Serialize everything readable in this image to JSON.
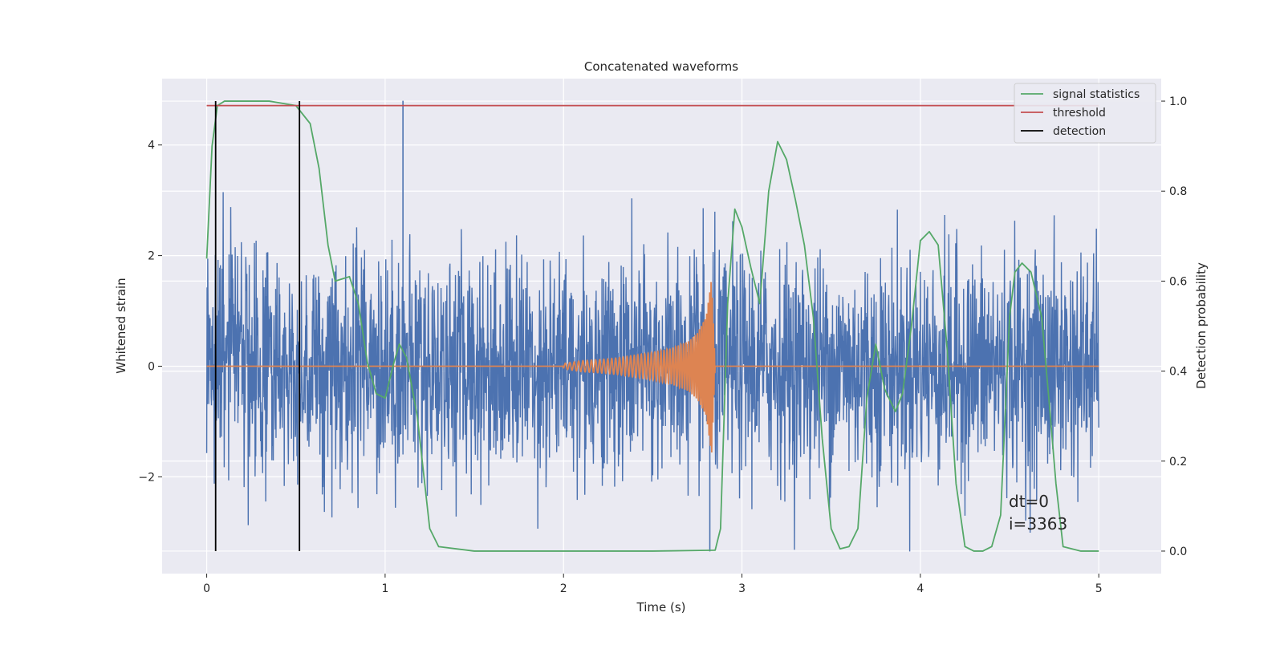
{
  "chart_data": {
    "type": "line",
    "title": "Concatenated waveforms",
    "xlabel": "Time (s)",
    "ylabel": "Whitened strain",
    "ylabel_right": "Detection probability",
    "xlim": [
      -0.25,
      5.35
    ],
    "ylim": [
      -3.75,
      5.2
    ],
    "ylim_right": [
      -0.05,
      1.05
    ],
    "xticks": [
      0,
      1,
      2,
      3,
      4,
      5
    ],
    "xtick_labels": [
      "0",
      "1",
      "2",
      "3",
      "4",
      "5"
    ],
    "yticks": [
      -2,
      0,
      2,
      4
    ],
    "ytick_labels": [
      "−2",
      "0",
      "2",
      "4"
    ],
    "yticks_right": [
      0.0,
      0.2,
      0.4,
      0.6,
      0.8,
      1.0
    ],
    "ytick_labels_right": [
      "0.0",
      "0.2",
      "0.4",
      "0.6",
      "0.8",
      "1.0"
    ],
    "grid": true,
    "style": "seaborn-darkgrid",
    "legend_position": "top-right",
    "series": [
      {
        "name": "strain",
        "axis": "left",
        "color": "#4c72b0",
        "kind": "noise",
        "x_range": [
          0,
          5
        ],
        "mean": 0,
        "std": 1.0,
        "min": -3.35,
        "max": 4.8,
        "notable_spikes": [
          [
            1.1,
            4.8
          ],
          [
            2.82,
            -3.35
          ],
          [
            0.52,
            -3.3
          ]
        ]
      },
      {
        "name": "chirp",
        "axis": "left",
        "color": "#dd8452",
        "kind": "chirp",
        "x": [
          2.0,
          2.1,
          2.2,
          2.3,
          2.4,
          2.5,
          2.6,
          2.7,
          2.75,
          2.8,
          2.83,
          2.85,
          5.0
        ],
        "amplitude": [
          0.05,
          0.1,
          0.12,
          0.15,
          0.2,
          0.25,
          0.32,
          0.45,
          0.6,
          0.9,
          1.6,
          0.0,
          0.0
        ]
      },
      {
        "name": "signal statistics",
        "axis": "right",
        "color": "#55a868",
        "x": [
          0,
          0.03,
          0.06,
          0.1,
          0.2,
          0.35,
          0.5,
          0.58,
          0.63,
          0.68,
          0.72,
          0.76,
          0.8,
          0.85,
          0.9,
          0.95,
          1.0,
          1.05,
          1.08,
          1.12,
          1.18,
          1.25,
          1.3,
          1.5,
          2.0,
          2.5,
          2.85,
          2.88,
          2.92,
          2.96,
          3.0,
          3.05,
          3.1,
          3.15,
          3.2,
          3.25,
          3.3,
          3.35,
          3.4,
          3.45,
          3.5,
          3.55,
          3.6,
          3.65,
          3.7,
          3.75,
          3.8,
          3.86,
          3.9,
          3.95,
          4.0,
          4.05,
          4.1,
          4.15,
          4.2,
          4.25,
          4.3,
          4.35,
          4.4,
          4.45,
          4.5,
          4.53,
          4.57,
          4.62,
          4.68,
          4.72,
          4.76,
          4.8,
          4.9,
          5.0
        ],
        "values": [
          0.65,
          0.9,
          0.99,
          1.0,
          1.0,
          1.0,
          0.99,
          0.95,
          0.85,
          0.68,
          0.6,
          0.605,
          0.61,
          0.55,
          0.42,
          0.35,
          0.34,
          0.42,
          0.46,
          0.43,
          0.3,
          0.05,
          0.01,
          0.0,
          0.0,
          0.0,
          0.002,
          0.05,
          0.55,
          0.76,
          0.72,
          0.63,
          0.55,
          0.8,
          0.91,
          0.87,
          0.78,
          0.68,
          0.52,
          0.25,
          0.05,
          0.005,
          0.01,
          0.05,
          0.34,
          0.46,
          0.36,
          0.31,
          0.35,
          0.5,
          0.69,
          0.71,
          0.68,
          0.45,
          0.15,
          0.01,
          0.0,
          0.0,
          0.01,
          0.08,
          0.52,
          0.62,
          0.64,
          0.62,
          0.52,
          0.34,
          0.15,
          0.01,
          0.0,
          0.0
        ]
      },
      {
        "name": "threshold",
        "axis": "right",
        "color": "#c44e52",
        "x": [
          0,
          5
        ],
        "values": [
          0.99,
          0.99
        ]
      },
      {
        "name": "detection",
        "axis": "right",
        "color": "#000000",
        "kind": "vertical_lines",
        "x": [
          0.05,
          0.52
        ],
        "range": [
          0.0,
          1.0
        ]
      }
    ],
    "legend": [
      "signal statistics",
      "threshold",
      "detection"
    ],
    "annotations": [
      "dt=0",
      "i=3363"
    ]
  }
}
